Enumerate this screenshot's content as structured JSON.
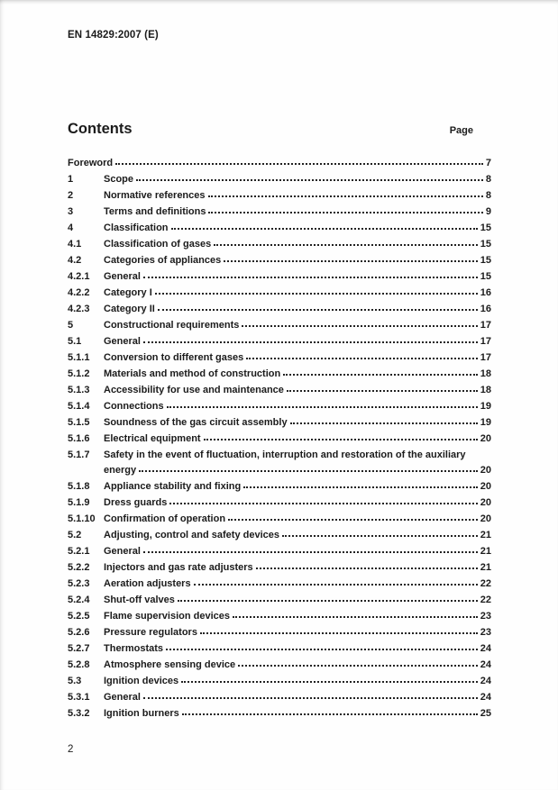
{
  "document": {
    "header": "EN 14829:2007 (E)",
    "footer_page_number": "2"
  },
  "colors": {
    "text": "#1b1b1b",
    "background": "#fefefe",
    "leader_dots": "#222222"
  },
  "contents": {
    "title": "Contents",
    "page_column_label": "Page",
    "entries": [
      {
        "num": "",
        "title": "Foreword",
        "page": "7"
      },
      {
        "num": "1",
        "title": "Scope",
        "page": "8"
      },
      {
        "num": "2",
        "title": "Normative references",
        "page": "8"
      },
      {
        "num": "3",
        "title": "Terms and definitions",
        "page": "9"
      },
      {
        "num": "4",
        "title": "Classification",
        "page": "15"
      },
      {
        "num": "4.1",
        "title": "Classification of gases",
        "page": "15"
      },
      {
        "num": "4.2",
        "title": "Categories of appliances",
        "page": "15"
      },
      {
        "num": "4.2.1",
        "title": "General",
        "page": "15"
      },
      {
        "num": "4.2.2",
        "title": "Category I",
        "page": "16"
      },
      {
        "num": "4.2.3",
        "title": "Category II",
        "page": "16"
      },
      {
        "num": "5",
        "title": "Constructional requirements",
        "page": "17"
      },
      {
        "num": "5.1",
        "title": "General",
        "page": "17"
      },
      {
        "num": "5.1.1",
        "title": "Conversion to different gases",
        "page": "17"
      },
      {
        "num": "5.1.2",
        "title": "Materials and method of construction",
        "page": "18"
      },
      {
        "num": "5.1.3",
        "title": "Accessibility for use and maintenance",
        "page": "18"
      },
      {
        "num": "5.1.4",
        "title": "Connections",
        "page": "19"
      },
      {
        "num": "5.1.5",
        "title": "Soundness of the gas circuit assembly",
        "page": "19"
      },
      {
        "num": "5.1.6",
        "title": "Electrical equipment",
        "page": "20"
      },
      {
        "num": "5.1.7",
        "title": "Safety in the event of fluctuation, interruption and restoration of the auxiliary",
        "continuation": "energy",
        "page": "20"
      },
      {
        "num": "5.1.8",
        "title": "Appliance stability and fixing",
        "page": "20"
      },
      {
        "num": "5.1.9",
        "title": "Dress guards",
        "page": "20"
      },
      {
        "num": "5.1.10",
        "title": "Confirmation of operation",
        "page": "20"
      },
      {
        "num": "5.2",
        "title": "Adjusting, control and safety devices",
        "page": "21"
      },
      {
        "num": "5.2.1",
        "title": "General",
        "page": "21"
      },
      {
        "num": "5.2.2",
        "title": "Injectors and gas rate adjusters",
        "page": "21"
      },
      {
        "num": "5.2.3",
        "title": "Aeration adjusters",
        "page": "22"
      },
      {
        "num": "5.2.4",
        "title": "Shut-off valves",
        "page": "22"
      },
      {
        "num": "5.2.5",
        "title": "Flame supervision devices",
        "page": "23"
      },
      {
        "num": "5.2.6",
        "title": "Pressure regulators",
        "page": "23"
      },
      {
        "num": "5.2.7",
        "title": "Thermostats",
        "page": "24"
      },
      {
        "num": "5.2.8",
        "title": "Atmosphere sensing device",
        "page": "24"
      },
      {
        "num": "5.3",
        "title": "Ignition devices",
        "page": "24"
      },
      {
        "num": "5.3.1",
        "title": "General",
        "page": "24"
      },
      {
        "num": "5.3.2",
        "title": "Ignition burners",
        "page": "25"
      }
    ]
  }
}
